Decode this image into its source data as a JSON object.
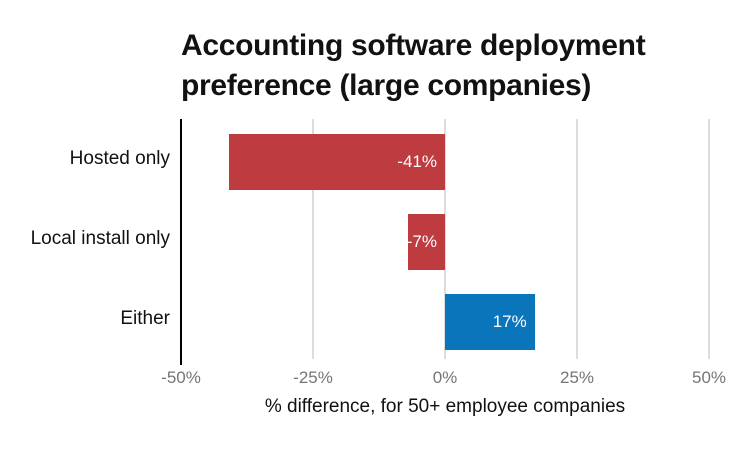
{
  "chart_data": {
    "type": "bar",
    "orientation": "horizontal",
    "title": "Accounting software deployment preference (large companies)",
    "title_lines": [
      "Accounting software deployment",
      "preference (large companies)"
    ],
    "categories": [
      "Hosted only",
      "Local install only",
      "Either"
    ],
    "values": [
      -41,
      -7,
      17
    ],
    "value_labels": [
      "-41%",
      "-7%",
      "17%"
    ],
    "xlabel": "% difference, for 50+ employee companies",
    "xlim": [
      -50,
      50
    ],
    "x_tick_values": [
      -50,
      -25,
      0,
      25,
      50
    ],
    "x_tick_labels": [
      "-50%",
      "-25%",
      "0%",
      "25%",
      "50%"
    ],
    "grid": "vertical",
    "legend": "none",
    "colors": {
      "negative_bar": "#be3b40",
      "positive_bar": "#0b75bc",
      "gridline": "#dcdcdc",
      "axis_line": "#000000",
      "value_label_text": "#ffffff",
      "tick_label_text": "#757575",
      "title_text": "#121212"
    }
  }
}
